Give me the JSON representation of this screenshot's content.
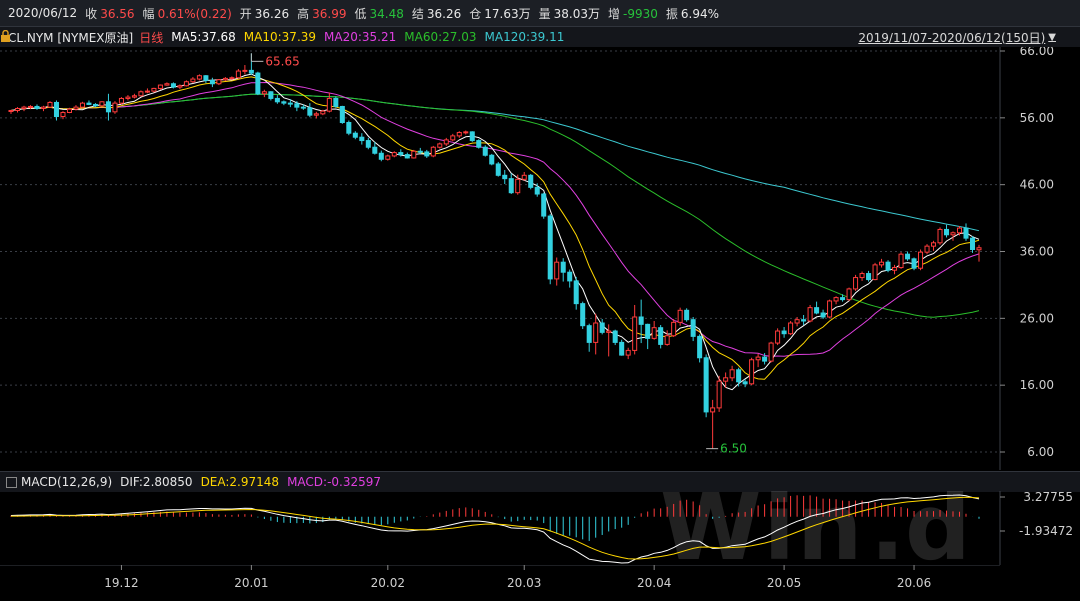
{
  "quote": {
    "date": "2020/06/12",
    "close_label": "收",
    "close": "36.56",
    "change_label": "幅",
    "change": "0.61%(0.22)",
    "open_label": "开",
    "open": "36.26",
    "high_label": "高",
    "high": "36.99",
    "low_label": "低",
    "low": "34.48",
    "settle_label": "结",
    "settle": "36.26",
    "oi_label": "仓",
    "oi": "17.63万",
    "volume_label": "量",
    "volume": "38.03万",
    "oi_change_label": "增",
    "oi_change": "-9930",
    "amplitude_label": "振",
    "amplitude": "6.94%"
  },
  "indicators": {
    "symbol": "CL.NYM [NYMEX原油]",
    "period": "日线",
    "ma5": "MA5:37.68",
    "ma10": "MA10:37.39",
    "ma20": "MA20:35.21",
    "ma60": "MA60:27.03",
    "ma120": "MA120:39.11",
    "range": "2019/11/07-2020/06/12(150日)"
  },
  "macd_legend": {
    "name": "MACD(12,26,9)",
    "dif": "DIF:2.80850",
    "dea": "DEA:2.97148",
    "macd": "MACD:-0.32597"
  },
  "colors": {
    "up": "#ff3b3b",
    "down": "#33d1e0",
    "ma5": "#ffffff",
    "ma10": "#ffd700",
    "ma20": "#e040e0",
    "ma60": "#2bbf2b",
    "ma120": "#3cc8d0",
    "dif": "#ffffff",
    "dea": "#ffd700",
    "grid": "#3a3e46"
  },
  "chart_data": [
    {
      "type": "candlestick",
      "title": "CL.NYM [NYMEX原油] 日线",
      "ylim": [
        6,
        66
      ],
      "y_ticks": [
        "66.00",
        "56.00",
        "46.00",
        "36.00",
        "26.00",
        "16.00",
        "6.00"
      ],
      "x_ticks": [
        "19.12",
        "20.01",
        "20.02",
        "20.03",
        "20.04",
        "20.05",
        "20.06"
      ],
      "annotations": [
        {
          "label": "65.65",
          "value": 65.65,
          "bar_index": 37
        },
        {
          "label": "6.50",
          "value": 6.5,
          "bar_index": 107
        }
      ],
      "ohlc": [
        [
          57.0,
          57.2,
          56.6,
          57.1
        ],
        [
          57.1,
          57.6,
          56.8,
          57.4
        ],
        [
          57.4,
          57.8,
          57.0,
          57.6
        ],
        [
          57.6,
          57.9,
          57.3,
          57.7
        ],
        [
          57.7,
          58.0,
          57.2,
          57.4
        ],
        [
          57.4,
          57.8,
          57.0,
          57.6
        ],
        [
          57.6,
          58.5,
          57.5,
          58.3
        ],
        [
          58.3,
          58.6,
          55.6,
          56.2
        ],
        [
          56.2,
          57.0,
          55.8,
          56.8
        ],
        [
          56.8,
          57.5,
          56.7,
          57.3
        ],
        [
          57.3,
          57.9,
          57.1,
          57.6
        ],
        [
          57.6,
          58.4,
          57.5,
          58.2
        ],
        [
          58.2,
          58.6,
          57.9,
          58.0
        ],
        [
          58.0,
          58.2,
          57.6,
          57.8
        ],
        [
          57.8,
          58.5,
          57.7,
          58.4
        ],
        [
          58.4,
          59.6,
          55.6,
          56.9
        ],
        [
          56.9,
          58.5,
          56.6,
          58.2
        ],
        [
          58.2,
          59.1,
          58.0,
          58.9
        ],
        [
          58.9,
          59.4,
          58.6,
          59.1
        ],
        [
          59.1,
          59.6,
          58.9,
          59.3
        ],
        [
          59.3,
          60.1,
          59.2,
          59.9
        ],
        [
          59.9,
          60.4,
          59.7,
          60.0
        ],
        [
          60.0,
          60.5,
          59.8,
          60.4
        ],
        [
          60.4,
          61.0,
          60.2,
          60.9
        ],
        [
          60.9,
          61.3,
          60.8,
          61.1
        ],
        [
          61.1,
          61.3,
          60.4,
          60.6
        ],
        [
          60.6,
          61.0,
          60.3,
          60.8
        ],
        [
          60.8,
          61.6,
          60.7,
          61.4
        ],
        [
          61.4,
          62.1,
          61.2,
          61.8
        ],
        [
          61.8,
          62.5,
          61.6,
          62.3
        ],
        [
          62.3,
          62.4,
          61.2,
          61.6
        ],
        [
          61.6,
          62.0,
          60.6,
          61.1
        ],
        [
          61.1,
          61.8,
          60.9,
          61.7
        ],
        [
          61.7,
          62.1,
          61.5,
          61.9
        ],
        [
          61.9,
          62.2,
          61.7,
          62.0
        ],
        [
          62.0,
          63.3,
          61.9,
          63.0
        ],
        [
          63.0,
          63.9,
          62.5,
          63.1
        ],
        [
          63.1,
          65.65,
          62.4,
          62.7
        ],
        [
          62.7,
          62.9,
          59.4,
          59.6
        ],
        [
          59.6,
          60.2,
          59.1,
          59.9
        ],
        [
          59.9,
          60.0,
          58.6,
          58.9
        ],
        [
          58.9,
          59.4,
          58.1,
          58.4
        ],
        [
          58.4,
          58.6,
          57.9,
          58.2
        ],
        [
          58.2,
          58.8,
          57.6,
          58.1
        ],
        [
          58.1,
          58.5,
          57.0,
          57.6
        ],
        [
          57.6,
          58.0,
          57.2,
          57.5
        ],
        [
          57.5,
          58.2,
          56.1,
          56.4
        ],
        [
          56.4,
          56.9,
          55.9,
          56.6
        ],
        [
          56.6,
          57.2,
          56.4,
          57.0
        ],
        [
          57.0,
          59.8,
          56.8,
          58.9
        ],
        [
          58.9,
          59.2,
          57.5,
          57.7
        ],
        [
          57.7,
          57.8,
          55.1,
          55.3
        ],
        [
          55.3,
          55.6,
          53.4,
          53.7
        ],
        [
          53.7,
          54.0,
          52.8,
          53.1
        ],
        [
          53.1,
          53.7,
          52.0,
          52.6
        ],
        [
          52.6,
          53.0,
          51.3,
          51.6
        ],
        [
          51.6,
          52.4,
          50.5,
          50.7
        ],
        [
          50.7,
          51.1,
          49.5,
          49.8
        ],
        [
          49.8,
          50.5,
          49.6,
          50.3
        ],
        [
          50.3,
          51.0,
          50.1,
          50.8
        ],
        [
          50.8,
          51.3,
          50.2,
          50.5
        ],
        [
          50.5,
          50.8,
          49.9,
          50.0
        ],
        [
          50.0,
          51.2,
          49.9,
          51.0
        ],
        [
          51.0,
          51.5,
          50.6,
          50.9
        ],
        [
          50.9,
          51.2,
          50.0,
          50.3
        ],
        [
          50.3,
          51.8,
          50.1,
          51.6
        ],
        [
          51.6,
          52.3,
          51.4,
          52.1
        ],
        [
          52.1,
          53.0,
          51.8,
          52.7
        ],
        [
          52.7,
          53.6,
          52.5,
          53.3
        ],
        [
          53.3,
          54.0,
          53.0,
          53.8
        ],
        [
          53.8,
          54.1,
          53.5,
          53.9
        ],
        [
          53.9,
          54.0,
          52.4,
          52.6
        ],
        [
          52.6,
          52.8,
          51.4,
          51.6
        ],
        [
          51.6,
          51.9,
          50.2,
          50.4
        ],
        [
          50.4,
          50.6,
          48.9,
          49.1
        ],
        [
          49.1,
          49.4,
          47.2,
          47.4
        ],
        [
          47.4,
          48.2,
          46.1,
          46.9
        ],
        [
          46.9,
          47.7,
          44.6,
          44.8
        ],
        [
          44.8,
          47.5,
          44.5,
          46.8
        ],
        [
          46.8,
          47.9,
          46.6,
          47.4
        ],
        [
          47.4,
          47.6,
          45.3,
          45.6
        ],
        [
          45.6,
          46.2,
          44.2,
          44.6
        ],
        [
          44.6,
          44.8,
          40.9,
          41.3
        ],
        [
          41.3,
          41.6,
          31.1,
          31.9
        ],
        [
          31.9,
          35.1,
          30.9,
          34.4
        ],
        [
          34.4,
          35.0,
          31.5,
          32.9
        ],
        [
          32.9,
          33.3,
          30.6,
          31.6
        ],
        [
          31.6,
          32.2,
          27.3,
          28.2
        ],
        [
          28.2,
          28.5,
          24.4,
          24.9
        ],
        [
          24.9,
          25.2,
          21.0,
          22.4
        ],
        [
          22.4,
          26.7,
          20.6,
          25.3
        ],
        [
          25.3,
          25.9,
          23.6,
          23.9
        ],
        [
          23.9,
          25.1,
          20.3,
          24.1
        ],
        [
          24.1,
          24.3,
          22.0,
          22.4
        ],
        [
          22.4,
          22.8,
          20.4,
          20.5
        ],
        [
          20.5,
          21.6,
          19.9,
          21.2
        ],
        [
          21.2,
          28.0,
          20.6,
          26.2
        ],
        [
          26.2,
          28.8,
          22.3,
          25.1
        ],
        [
          25.1,
          25.2,
          21.4,
          23.0
        ],
        [
          23.0,
          25.6,
          22.8,
          24.6
        ],
        [
          24.6,
          25.0,
          21.5,
          22.1
        ],
        [
          22.1,
          24.2,
          21.9,
          23.4
        ],
        [
          23.4,
          25.9,
          23.2,
          25.4
        ],
        [
          25.4,
          27.6,
          24.9,
          27.2
        ],
        [
          27.2,
          27.5,
          25.5,
          25.8
        ],
        [
          25.8,
          26.2,
          22.6,
          23.3
        ],
        [
          23.3,
          23.6,
          19.4,
          20.1
        ],
        [
          20.1,
          20.6,
          11.2,
          12.0
        ],
        [
          12.0,
          13.8,
          6.5,
          12.6
        ],
        [
          12.6,
          17.4,
          12.0,
          16.6
        ],
        [
          16.6,
          17.9,
          15.6,
          17.1
        ],
        [
          17.1,
          18.9,
          16.6,
          18.3
        ],
        [
          18.3,
          18.6,
          15.8,
          16.5
        ],
        [
          16.5,
          16.9,
          15.7,
          16.2
        ],
        [
          16.2,
          20.1,
          16.0,
          19.8
        ],
        [
          19.8,
          20.7,
          18.7,
          20.2
        ],
        [
          20.2,
          20.8,
          19.1,
          19.6
        ],
        [
          19.6,
          22.5,
          19.4,
          22.3
        ],
        [
          22.3,
          24.5,
          22.0,
          24.1
        ],
        [
          24.1,
          24.7,
          23.1,
          23.7
        ],
        [
          23.7,
          25.6,
          23.5,
          25.3
        ],
        [
          25.3,
          26.2,
          24.8,
          25.8
        ],
        [
          25.8,
          26.5,
          25.0,
          25.6
        ],
        [
          25.6,
          28.0,
          25.4,
          27.6
        ],
        [
          27.6,
          28.5,
          26.6,
          26.8
        ],
        [
          26.8,
          27.3,
          25.9,
          26.2
        ],
        [
          26.2,
          28.8,
          26.0,
          28.6
        ],
        [
          28.6,
          29.3,
          28.1,
          29.1
        ],
        [
          29.1,
          29.6,
          28.5,
          28.8
        ],
        [
          28.8,
          30.6,
          28.6,
          30.4
        ],
        [
          30.4,
          32.5,
          30.1,
          32.1
        ],
        [
          32.1,
          33.0,
          31.6,
          32.7
        ],
        [
          32.7,
          33.1,
          31.5,
          31.8
        ],
        [
          31.8,
          34.3,
          31.7,
          34.0
        ],
        [
          34.0,
          34.9,
          33.6,
          34.4
        ],
        [
          34.4,
          34.7,
          32.9,
          33.2
        ],
        [
          33.2,
          34.0,
          32.6,
          33.6
        ],
        [
          33.6,
          35.9,
          33.4,
          35.6
        ],
        [
          35.6,
          36.0,
          34.6,
          34.9
        ],
        [
          34.9,
          35.1,
          33.2,
          33.5
        ],
        [
          33.5,
          36.3,
          33.2,
          35.9
        ],
        [
          35.9,
          37.1,
          35.6,
          36.8
        ],
        [
          36.8,
          37.6,
          36.1,
          37.3
        ],
        [
          37.3,
          39.6,
          37.0,
          39.3
        ],
        [
          39.3,
          40.0,
          38.1,
          38.5
        ],
        [
          38.5,
          39.0,
          37.6,
          38.8
        ],
        [
          38.8,
          39.8,
          38.4,
          39.5
        ],
        [
          39.5,
          40.2,
          37.6,
          38.0
        ],
        [
          38.0,
          38.3,
          35.8,
          36.3
        ],
        [
          36.26,
          36.99,
          34.48,
          36.56
        ]
      ]
    },
    {
      "type": "macd",
      "params": "MACD(12,26,9)",
      "y_ticks": [
        "3.27755",
        "-1.93472"
      ],
      "dif_last": 2.8085,
      "dea_last": 2.97148,
      "macd_last": -0.32597
    }
  ]
}
